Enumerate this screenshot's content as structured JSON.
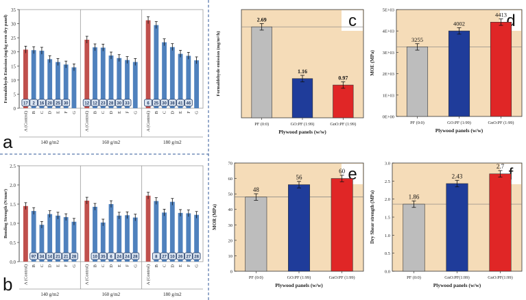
{
  "colors": {
    "red": "#c0504d",
    "blue": "#4f81bd",
    "badge_bg": "#dce6f2",
    "badge_border": "#1f3864",
    "tan": "#f5dcb8",
    "grey": "#bdbdbd",
    "navy": "#1f3c9a",
    "crimson": "#e02626",
    "ref_line": "#7f7f7f",
    "divider": "#2e5597"
  },
  "chart_data": [
    {
      "id": "a",
      "letter": "a",
      "type": "bar",
      "ylabel": "Formaldehyde Emission (mg/kg oven dry panel)",
      "ylim": [
        0,
        35
      ],
      "yticks": [
        0,
        5,
        10,
        15,
        20,
        25,
        30,
        35
      ],
      "categories": [
        "A (Control)",
        "B",
        "C",
        "D",
        "E",
        "F",
        "G"
      ],
      "groups": [
        {
          "label": "140 g/m2",
          "values": [
            20.8,
            20.6,
            20.4,
            17.4,
            16.4,
            15.5,
            14.5
          ],
          "badges": [
            "17",
            "2",
            "16",
            "20",
            "25",
            "30",
            ""
          ]
        },
        {
          "label": "160 g/m2",
          "values": [
            24.3,
            21.6,
            21.5,
            18.7,
            17.8,
            17.1,
            16.4
          ],
          "badges": [
            "12",
            "12",
            "23",
            "28",
            "30",
            "33",
            ""
          ]
        },
        {
          "label": "180 g/m2",
          "values": [
            31.2,
            29.5,
            23.4,
            21.7,
            19.3,
            18.6,
            17.0
          ],
          "badges": [
            "6",
            "25",
            "30",
            "38",
            "41",
            "46",
            ""
          ]
        }
      ]
    },
    {
      "id": "b",
      "letter": "b",
      "type": "bar",
      "ylabel": "Bonding Strength (N/mm²)",
      "ylim": [
        0,
        2.5
      ],
      "yticks": [
        "0.0",
        "0.5",
        "1.0",
        "1.5",
        "2.0",
        "2.5"
      ],
      "categories": [
        "A (Control)",
        "B",
        "C",
        "D",
        "E",
        "F",
        "G"
      ],
      "groups": [
        {
          "label": "140 g/m2",
          "values": [
            1.45,
            1.32,
            0.96,
            1.24,
            1.2,
            1.16,
            1.04
          ],
          "badges": [
            "",
            "97",
            "34",
            "14",
            "21",
            "21",
            "28"
          ]
        },
        {
          "label": "160 g/m2",
          "values": [
            1.59,
            1.43,
            1.02,
            1.5,
            1.2,
            1.21,
            1.15
          ],
          "badges": [
            "",
            "10",
            "35",
            "6",
            "24",
            "24",
            "28"
          ]
        },
        {
          "label": "180 g/m2",
          "values": [
            1.72,
            1.58,
            1.28,
            1.56,
            1.27,
            1.26,
            1.22
          ],
          "badges": [
            "",
            "8",
            "27",
            "10",
            "26",
            "27",
            "28"
          ]
        }
      ]
    },
    {
      "id": "c",
      "letter": "c",
      "type": "bar",
      "ylabel": "Formaldehyde emission (mg/m²/h)",
      "xlabel": "Plywood panels (w/w)",
      "categories": [
        "PF (0:0)",
        "GO:PF (1:99)",
        "GnO:PF (1:99)"
      ],
      "values": [
        2.69,
        1.16,
        0.97
      ],
      "labels": [
        "2.69",
        "1.16",
        "0.97"
      ],
      "ylim": [
        0,
        3.2
      ]
    },
    {
      "id": "d",
      "letter": "d",
      "type": "bar",
      "ylabel": "MOE (MPa)",
      "xlabel": "Plywood panels (w/w)",
      "categories": [
        "PF (0:0)",
        "GO:PF (1:99)",
        "GnO:PF (1:99)"
      ],
      "values": [
        3255,
        4002,
        4413
      ],
      "labels": [
        "3255",
        "4002",
        "4413"
      ],
      "ylim": [
        0,
        5000
      ],
      "yticks": [
        "0E+00",
        "1E+03",
        "2E+03",
        "3E+03",
        "4E+03",
        "5E+03"
      ]
    },
    {
      "id": "e",
      "letter": "e",
      "type": "bar",
      "ylabel": "MOR (MPa)",
      "xlabel": "Plywood panels (w/w)",
      "categories": [
        "PF (0:0)",
        "GO:PF (1:99)",
        "GnO:PF (1:99)"
      ],
      "values": [
        48,
        56,
        60
      ],
      "labels": [
        "48",
        "56",
        "60"
      ],
      "ylim": [
        0,
        70
      ],
      "yticks": [
        "0",
        "10",
        "20",
        "30",
        "40",
        "50",
        "60",
        "70"
      ]
    },
    {
      "id": "f",
      "letter": "f",
      "type": "bar",
      "ylabel": "Dry Shear strength (MPa)",
      "xlabel": "Plywood panels (w/w)",
      "categories": [
        "PF (0:0)",
        "GnO:PF(1:99)",
        "GnO:PF(1:99)"
      ],
      "values": [
        1.86,
        2.43,
        2.7
      ],
      "labels": [
        "1.86",
        "2.43",
        "2.7"
      ],
      "ylim": [
        0,
        3.0
      ],
      "yticks": [
        "0.0",
        "0.5",
        "1.0",
        "1.5",
        "2.0",
        "2.5",
        "3.0"
      ]
    }
  ]
}
